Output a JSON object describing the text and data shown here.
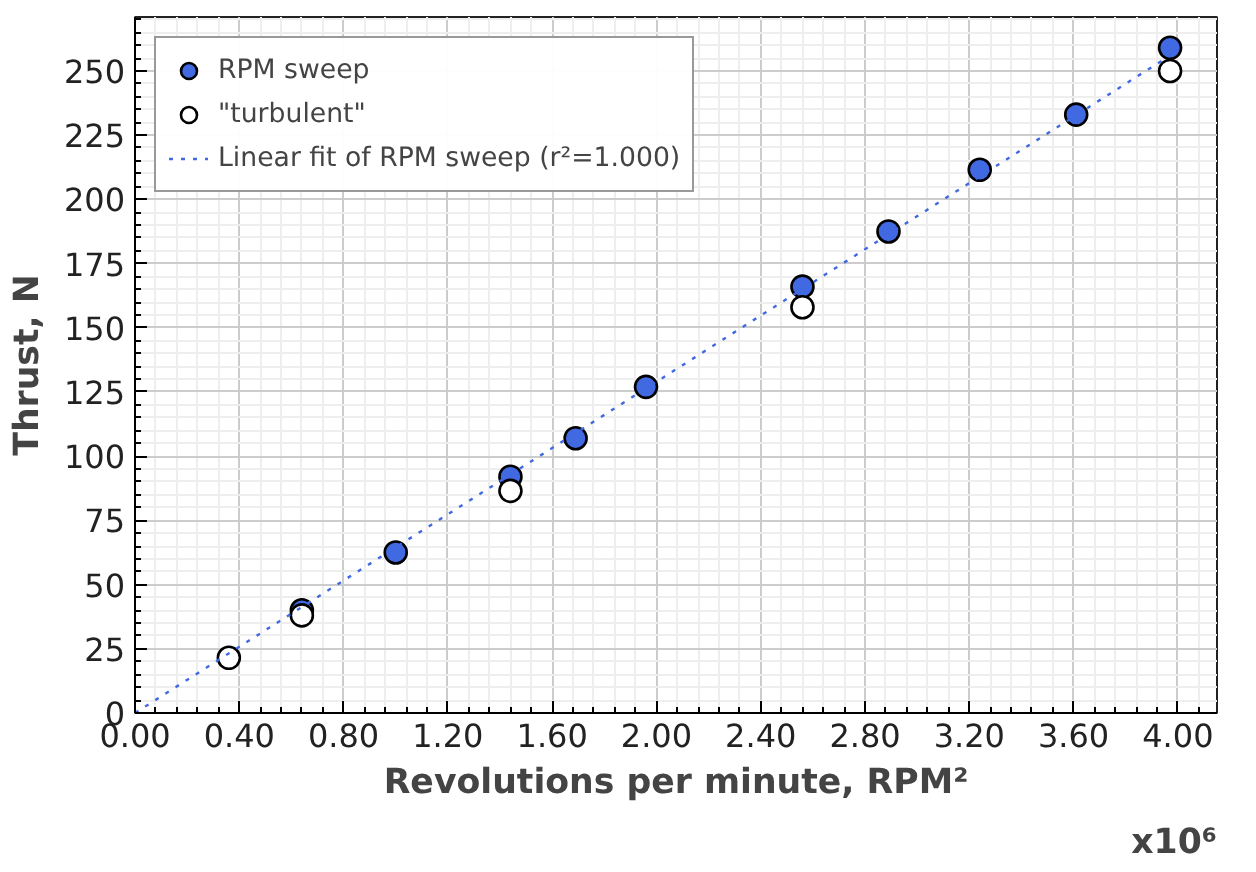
{
  "chart_data": {
    "type": "scatter",
    "xlabel": "Revolutions per minute, RPM²",
    "ylabel": "Thrust, N",
    "annotations": [
      "x10⁶"
    ],
    "xlim": [
      0,
      4.15
    ],
    "ylim": [
      0,
      271
    ],
    "xticks": [
      {
        "value": 0,
        "label": "0.00"
      },
      {
        "value": 0.4,
        "label": "0.40"
      },
      {
        "value": 0.8,
        "label": "0.80"
      },
      {
        "value": 1.2,
        "label": "1.20"
      },
      {
        "value": 1.6,
        "label": "1.60"
      },
      {
        "value": 2.0,
        "label": "2.00"
      },
      {
        "value": 2.4,
        "label": "2.40"
      },
      {
        "value": 2.8,
        "label": "2.80"
      },
      {
        "value": 3.2,
        "label": "3.20"
      },
      {
        "value": 3.6,
        "label": "3.60"
      },
      {
        "value": 4.0,
        "label": "4.00"
      }
    ],
    "yticks": [
      0,
      25,
      50,
      75,
      100,
      125,
      150,
      175,
      200,
      225,
      250
    ],
    "grid": true,
    "legend": "top left",
    "series": [
      {
        "name": "RPM sweep",
        "marker": "circle",
        "color": "#4169e1",
        "x": [
          0.64,
          1.0,
          1.44,
          1.69,
          1.96,
          2.56,
          2.89,
          3.24,
          3.61,
          3.97
        ],
        "values": [
          40,
          62.5,
          92,
          107,
          127,
          166,
          187.5,
          211.5,
          233,
          259
        ]
      },
      {
        "name": "\"turbulent\"",
        "marker": "circle",
        "color": "#ffffff",
        "x": [
          0.36,
          0.64,
          1.44,
          2.56,
          3.97
        ],
        "values": [
          21.5,
          38,
          86.5,
          158,
          250
        ]
      },
      {
        "name": "Linear fit of RPM sweep (r²=1.000)",
        "type": "line",
        "marker": "none",
        "line_style": "dotted",
        "color": "#4169e1",
        "x": [
          0,
          3.97
        ],
        "values": [
          0,
          256
        ]
      }
    ]
  }
}
